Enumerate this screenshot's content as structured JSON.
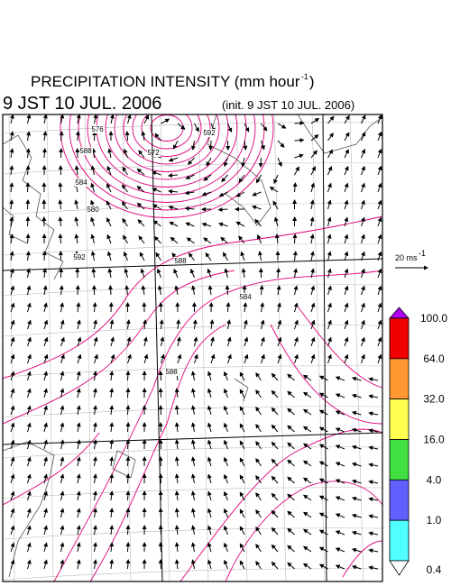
{
  "header": {
    "title": "PRECIPITATION INTENSITY (mm hour",
    "title_exponent": "-1",
    "title_close": ")",
    "valid_time": "9 JST 10 JUL. 2006",
    "init_time": "(init. 9 JST 10 JUL. 2006)"
  },
  "vector_scale": {
    "label": "20 ms",
    "exponent": "-1"
  },
  "colorbar": {
    "levels": [
      "100.0",
      "64.0",
      "32.0",
      "16.0",
      "4.0",
      "1.0",
      "0.4"
    ],
    "colors": [
      "#b000f0",
      "#f00000",
      "#ff9830",
      "#ffff50",
      "#40e040",
      "#6060ff",
      "#50ffff",
      "#ffffff"
    ]
  },
  "contour_labels": [
    "592",
    "588",
    "588",
    "584",
    "580",
    "576",
    "572",
    "588",
    "584",
    "592"
  ]
}
